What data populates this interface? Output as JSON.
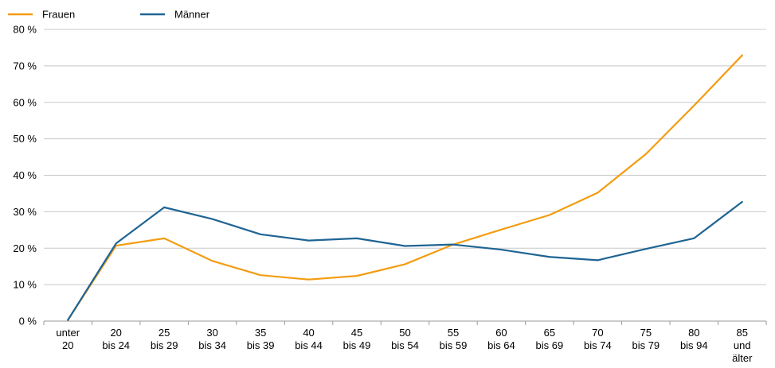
{
  "chart_data": {
    "type": "line",
    "title": "",
    "xlabel": "",
    "ylabel": "",
    "ylim": [
      0,
      80
    ],
    "yticks": [
      0,
      10,
      20,
      30,
      40,
      50,
      60,
      70,
      80
    ],
    "y_tick_labels": [
      "0 %",
      "10 %",
      "20 %",
      "30 %",
      "40 %",
      "50 %",
      "60 %",
      "70 %",
      "80 %"
    ],
    "categories": [
      [
        "unter",
        "20"
      ],
      [
        "20",
        "bis 24"
      ],
      [
        "25",
        "bis 29"
      ],
      [
        "30",
        "bis 34"
      ],
      [
        "35",
        "bis 39"
      ],
      [
        "40",
        "bis 44"
      ],
      [
        "45",
        "bis 49"
      ],
      [
        "50",
        "bis 54"
      ],
      [
        "55",
        "bis 59"
      ],
      [
        "60",
        "bis 64"
      ],
      [
        "65",
        "bis 69"
      ],
      [
        "70",
        "bis 74"
      ],
      [
        "75",
        "bis 79"
      ],
      [
        "80",
        "bis 94"
      ],
      [
        "85",
        "und",
        "älter"
      ]
    ],
    "grid": true,
    "legend_position": "top-left",
    "series": [
      {
        "name": "Frauen",
        "color": "#f39c12",
        "values": [
          0.3,
          20.7,
          22.7,
          16.5,
          12.6,
          11.4,
          12.4,
          15.6,
          21.0,
          25.1,
          29.1,
          35.2,
          45.8,
          59.1,
          72.9
        ]
      },
      {
        "name": "Männer",
        "color": "#1f6494",
        "values": [
          0.3,
          21.3,
          31.2,
          28.0,
          23.8,
          22.1,
          22.7,
          20.6,
          21.0,
          19.6,
          17.6,
          16.7,
          19.8,
          22.7,
          32.7
        ]
      }
    ]
  }
}
